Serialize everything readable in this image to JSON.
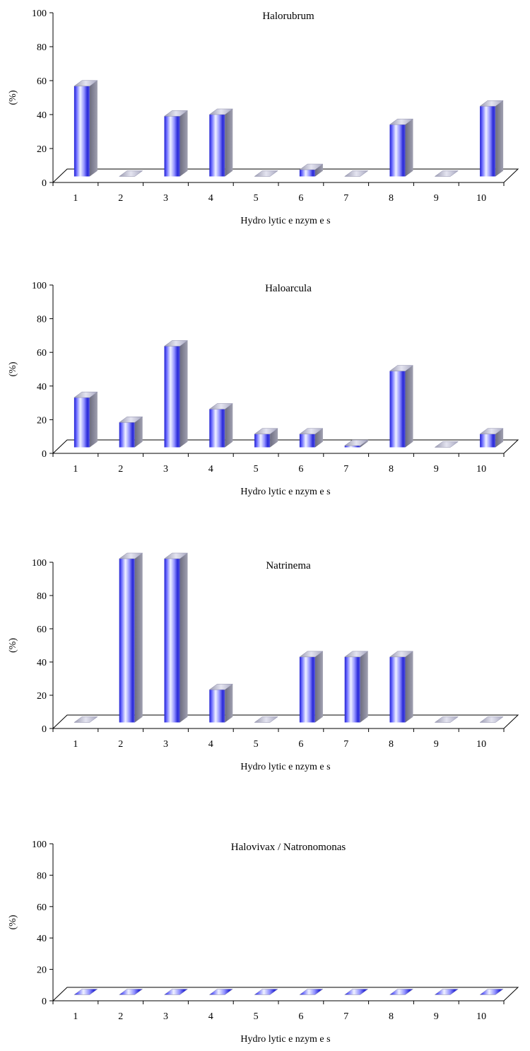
{
  "chart_data": [
    {
      "type": "bar",
      "title": "Halorubrum",
      "xlabel": "Hydro lytic  e nzym e s",
      "ylabel": "(%)",
      "ylim": [
        0,
        100
      ],
      "yticks": [
        "0",
        "20",
        "40",
        "60",
        "80",
        "100"
      ],
      "categories": [
        "1",
        "2",
        "3",
        "4",
        "5",
        "6",
        "7",
        "8",
        "9",
        "10"
      ],
      "values": [
        54,
        0,
        36,
        37,
        0,
        4,
        0,
        31,
        0,
        42
      ]
    },
    {
      "type": "bar",
      "title": "Haloarcula",
      "xlabel": "Hydro lytic  e nzym e s",
      "ylabel": "(%)",
      "ylim": [
        0,
        100
      ],
      "yticks": [
        "0",
        "20",
        "40",
        "60",
        "80",
        "100"
      ],
      "categories": [
        "1",
        "2",
        "3",
        "4",
        "5",
        "6",
        "7",
        "8",
        "9",
        "10"
      ],
      "values": [
        30,
        15,
        61,
        23,
        8,
        8,
        1,
        46,
        0,
        8
      ]
    },
    {
      "type": "bar",
      "title": "Natrinema",
      "xlabel": "Hydro lytic  e nzym e s",
      "ylabel": "(%)",
      "ylim": [
        0,
        100
      ],
      "yticks": [
        "0",
        "20",
        "40",
        "60",
        "80",
        "100"
      ],
      "categories": [
        "1",
        "2",
        "3",
        "4",
        "5",
        "6",
        "7",
        "8",
        "9",
        "10"
      ],
      "values": [
        0,
        100,
        100,
        20,
        0,
        40,
        40,
        40,
        0,
        0
      ]
    },
    {
      "type": "bar",
      "title": "Halovivax  /  Natronomonas",
      "xlabel": "Hydro lytic  e nzym e s",
      "ylabel": "(%)",
      "ylim": [
        0,
        100
      ],
      "yticks": [
        "0",
        "20",
        "40",
        "60",
        "80",
        "100"
      ],
      "categories": [
        "1",
        "2",
        "3",
        "4",
        "5",
        "6",
        "7",
        "8",
        "9",
        "10"
      ],
      "values": [
        0,
        0,
        0,
        0,
        0,
        0,
        0,
        0,
        0,
        0
      ]
    }
  ],
  "colors": {
    "bar_front_edge": "#1f1fd0",
    "bar_front_mid": "#f0f2ff",
    "bar_side": "#808090",
    "bar_top": "#c8c8d8",
    "axis": "#000000"
  }
}
